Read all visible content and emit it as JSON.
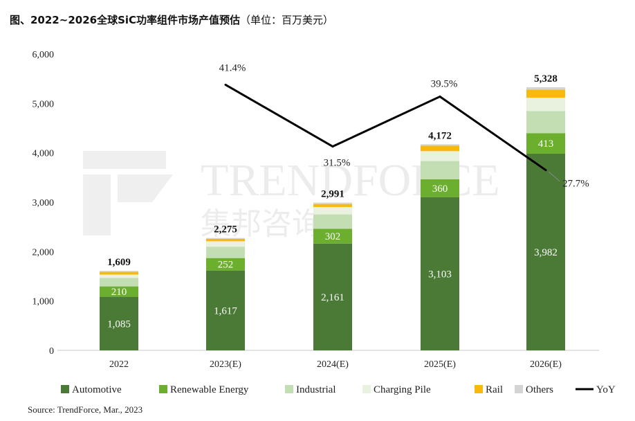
{
  "title": "图、2022~2026全球SiC功率组件市场产值预估",
  "unit_note": "（单位：百万美元）",
  "source": "Source: TrendForce, Mar., 2023",
  "watermark": {
    "brand": "TRENDFORCE",
    "brand_cn": "集邦咨询"
  },
  "chart_data": {
    "type": "bar",
    "stacked": true,
    "categories": [
      "2022",
      "2023(E)",
      "2024(E)",
      "2025(E)",
      "2026(E)"
    ],
    "ylim": [
      0,
      6000
    ],
    "yticks": [
      "0",
      "1,000",
      "2,000",
      "3,000",
      "4,000",
      "5,000",
      "6,000"
    ],
    "grid": false,
    "legend_position": "bottom",
    "series": [
      {
        "name": "Automotive",
        "color": "#4a7a35",
        "values": [
          1085,
          1617,
          2161,
          3103,
          3982
        ],
        "labels": [
          "1,085",
          "1,617",
          "2,161",
          "3,103",
          "3,982"
        ]
      },
      {
        "name": "Renewable Energy",
        "color": "#6cae2e",
        "values": [
          210,
          252,
          302,
          360,
          413
        ],
        "labels": [
          "210",
          "252",
          "302",
          "360",
          "413"
        ]
      },
      {
        "name": "Industrial",
        "color": "#c3deb2",
        "values": [
          170,
          230,
          290,
          370,
          450
        ],
        "labels": []
      },
      {
        "name": "Charging Pile",
        "color": "#e8f2df",
        "values": [
          70,
          110,
          150,
          200,
          270
        ],
        "labels": []
      },
      {
        "name": "Rail",
        "color": "#f7b90e",
        "values": [
          55,
          50,
          60,
          110,
          165
        ],
        "labels": []
      },
      {
        "name": "Others",
        "color": "#d4d4d4",
        "values": [
          19,
          16,
          28,
          29,
          48
        ],
        "labels": []
      }
    ],
    "totals": [
      "1,609",
      "2,275",
      "2,991",
      "4,172",
      "5,328"
    ],
    "total_values": [
      1609,
      2275,
      2991,
      4172,
      5328
    ],
    "yoy": {
      "name": "YoY",
      "color": "#000000",
      "categories": [
        "2023(E)",
        "2024(E)",
        "2025(E)",
        "2026(E)"
      ],
      "values": [
        41.4,
        31.5,
        39.5,
        27.7
      ],
      "labels": [
        "41.4%",
        "31.5%",
        "39.5%",
        "27.7%"
      ]
    }
  }
}
